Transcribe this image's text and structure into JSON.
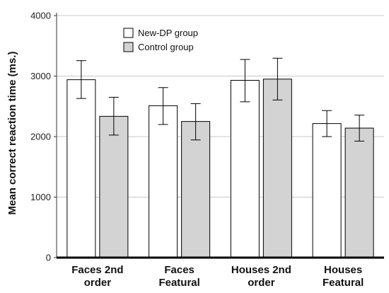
{
  "chart_data": {
    "type": "bar",
    "categories": [
      [
        "Faces 2nd",
        "order"
      ],
      [
        "Faces",
        "Featural"
      ],
      [
        "Houses 2nd",
        "order"
      ],
      [
        "Houses",
        "Featural"
      ]
    ],
    "series": [
      {
        "name": "New-DP group",
        "color": "#ffffff",
        "values": [
          2940,
          2510,
          2930,
          2215
        ],
        "err_low": [
          2630,
          2200,
          2575,
          2000
        ],
        "err_high": [
          3255,
          2810,
          3275,
          2430
        ]
      },
      {
        "name": "Control group",
        "color": "#d3d3d3",
        "values": [
          2335,
          2250,
          2950,
          2140
        ],
        "err_low": [
          2025,
          1945,
          2605,
          1925
        ],
        "err_high": [
          2650,
          2545,
          3295,
          2355
        ]
      }
    ],
    "ylabel": "Mean correct reaction time (ms.)",
    "xlabel": "",
    "ylim": [
      0,
      4000
    ],
    "yticks": [
      0,
      1000,
      2000,
      3000,
      4000
    ],
    "grid": true,
    "legend": "top-left"
  }
}
